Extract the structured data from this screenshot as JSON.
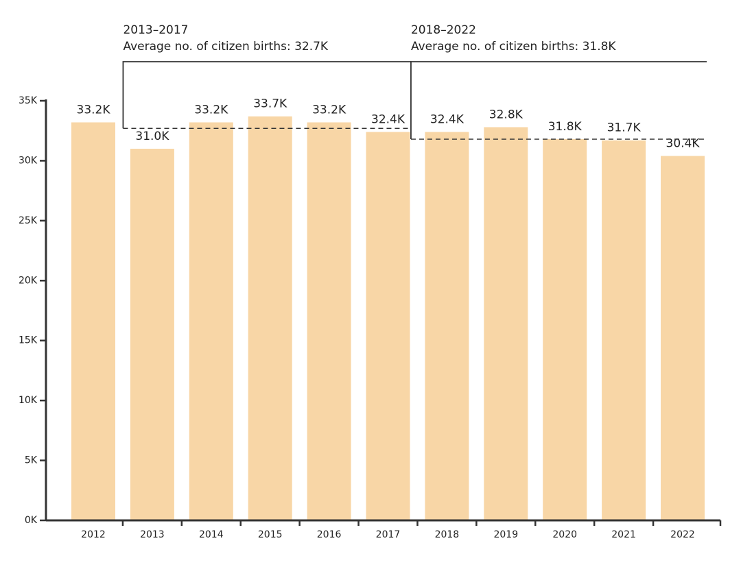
{
  "chart_data": {
    "type": "bar",
    "categories": [
      "2012",
      "2013",
      "2014",
      "2015",
      "2016",
      "2017",
      "2018",
      "2019",
      "2020",
      "2021",
      "2022"
    ],
    "values": [
      33200,
      31000,
      33200,
      33700,
      33200,
      32400,
      32400,
      32800,
      31800,
      31700,
      30400
    ],
    "value_labels": [
      "33.2K",
      "31.0K",
      "33.2K",
      "33.7K",
      "33.2K",
      "32.4K",
      "32.4K",
      "32.8K",
      "31.8K",
      "31.7K",
      "30.4K"
    ],
    "color": "#f8d6a6",
    "ylim": [
      0,
      35000
    ],
    "yticks": [
      {
        "value": 0,
        "label": "0K"
      },
      {
        "value": 5000,
        "label": "5K"
      },
      {
        "value": 10000,
        "label": "10K"
      },
      {
        "value": 15000,
        "label": "15K"
      },
      {
        "value": 20000,
        "label": "20K"
      },
      {
        "value": 25000,
        "label": "25K"
      },
      {
        "value": 30000,
        "label": "30K"
      },
      {
        "value": 35000,
        "label": "35K"
      }
    ],
    "grid": false,
    "annotations": [
      {
        "period": "2013–2017",
        "text": "Average no. of citizen births: 32.7K",
        "value": 32700
      },
      {
        "period": "2018–2022",
        "text": "Average no. of citizen births: 31.8K",
        "value": 31800
      }
    ]
  }
}
